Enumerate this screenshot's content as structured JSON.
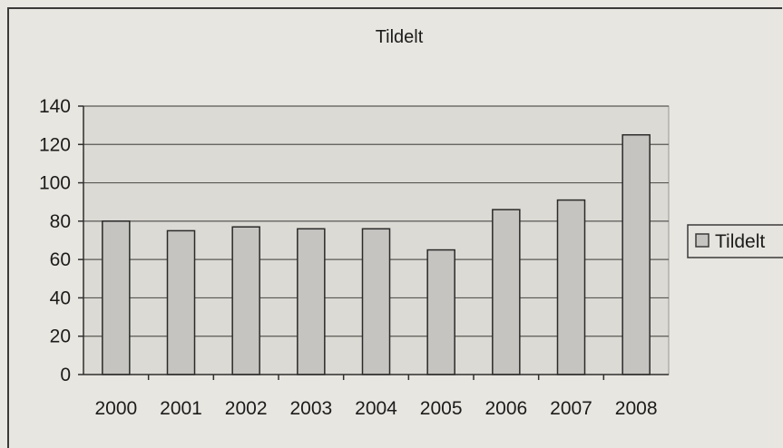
{
  "chart_data": {
    "type": "bar",
    "title": "Tildelt",
    "categories": [
      "2000",
      "2001",
      "2002",
      "2003",
      "2004",
      "2005",
      "2006",
      "2007",
      "2008"
    ],
    "series": [
      {
        "name": "Tildelt",
        "values": [
          80,
          75,
          77,
          76,
          76,
          65,
          86,
          91,
          125
        ],
        "color": "#c6c4c0"
      }
    ],
    "xlabel": "",
    "ylabel": "",
    "ylim": [
      0,
      140
    ],
    "yticks": [
      0,
      20,
      40,
      60,
      80,
      100,
      120,
      140
    ],
    "grid": true,
    "legend": "right"
  }
}
